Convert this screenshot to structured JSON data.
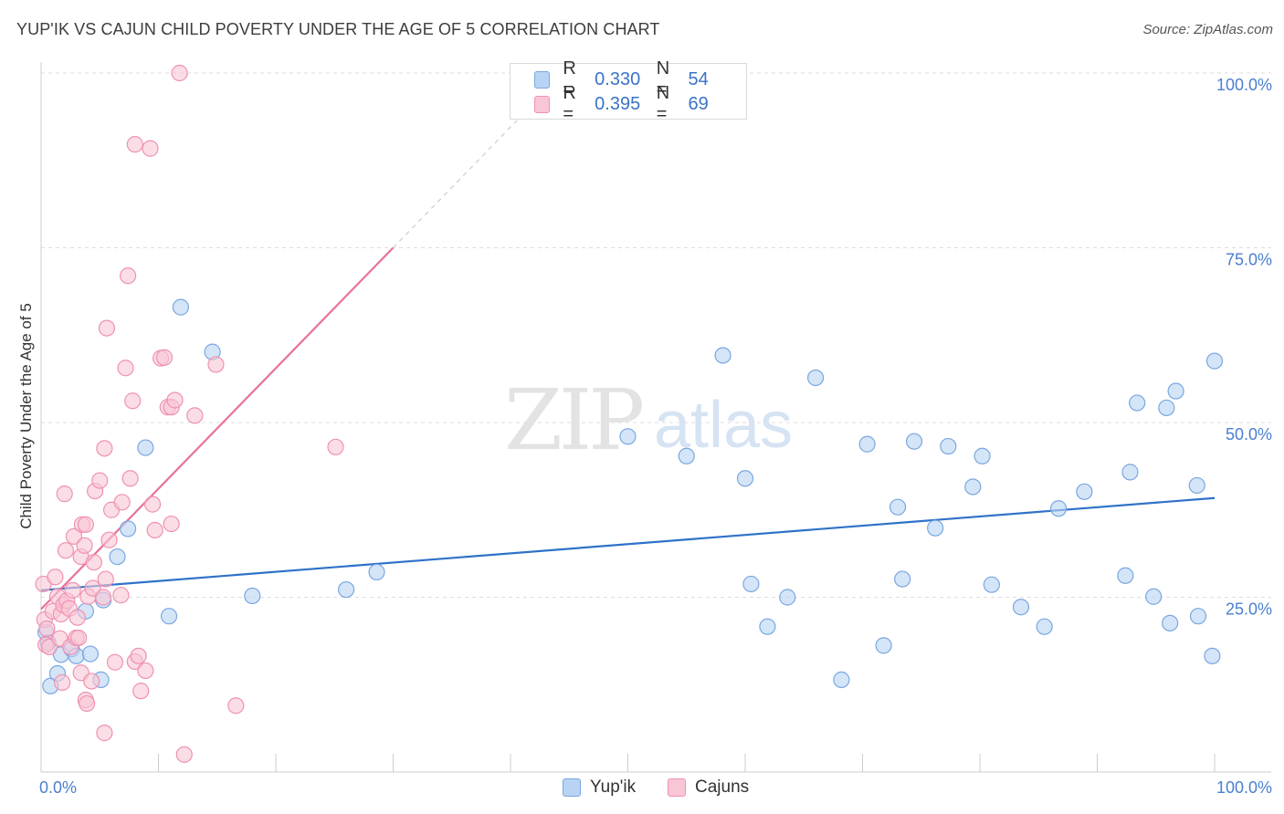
{
  "header": {
    "title": "YUP'IK VS CAJUN CHILD POVERTY UNDER THE AGE OF 5 CORRELATION CHART",
    "source": "Source: ZipAtlas.com"
  },
  "watermark": {
    "zip": "ZIP",
    "atlas": "atlas"
  },
  "legend": {
    "rows": [
      {
        "r_label": "R =",
        "r_value": "0.330",
        "n_label": "N =",
        "n_value": "54"
      },
      {
        "r_label": "R =",
        "r_value": "0.395",
        "n_label": "N =",
        "n_value": "69"
      }
    ]
  },
  "bottom_legend": {
    "items": [
      "Yup'ik",
      "Cajuns"
    ]
  },
  "colors": {
    "yupik_fill": "#b8d3f4",
    "yupik_stroke": "#7aa7e0",
    "yupik_line": "#2f72c8",
    "cajun_fill": "#f9c6d6",
    "cajun_stroke": "#ef92b0",
    "cajun_line": "#e8709a",
    "tick_label": "#4a7fd0",
    "grid": "#dedede"
  },
  "chart_data": {
    "type": "scatter",
    "title": "YUP'IK VS CAJUN CHILD POVERTY UNDER THE AGE OF 5 CORRELATION CHART",
    "xlabel": "",
    "ylabel": "Child Poverty Under the Age of 5",
    "xlim": [
      0,
      100
    ],
    "ylim": [
      0,
      100
    ],
    "x_tick_labels": [
      "0.0%",
      "100.0%"
    ],
    "y_ticks": [
      25,
      50,
      75,
      100
    ],
    "y_tick_labels": [
      "25.0%",
      "50.0%",
      "75.0%",
      "100.0%"
    ],
    "grid": true,
    "legend_position": "top-center",
    "series": [
      {
        "name": "Yup'ik",
        "R": 0.33,
        "N": 54,
        "trend": {
          "x": [
            0,
            100
          ],
          "y": [
            26.0,
            39.2
          ],
          "dashed_extension": false
        },
        "points": [
          [
            0.4,
            20.0
          ],
          [
            0.6,
            18.5
          ],
          [
            0.8,
            12.3
          ],
          [
            1.4,
            14.1
          ],
          [
            1.7,
            16.8
          ],
          [
            2.6,
            17.6
          ],
          [
            3.0,
            16.6
          ],
          [
            3.8,
            23.0
          ],
          [
            4.2,
            16.9
          ],
          [
            5.1,
            13.2
          ],
          [
            5.3,
            24.6
          ],
          [
            6.5,
            30.8
          ],
          [
            7.4,
            34.8
          ],
          [
            8.9,
            46.4
          ],
          [
            10.9,
            22.3
          ],
          [
            11.9,
            66.5
          ],
          [
            14.6,
            60.1
          ],
          [
            18.0,
            25.2
          ],
          [
            26.0,
            26.1
          ],
          [
            28.6,
            28.6
          ],
          [
            50.0,
            48.0
          ],
          [
            55.0,
            45.2
          ],
          [
            58.1,
            59.6
          ],
          [
            60.0,
            42.0
          ],
          [
            60.5,
            26.9
          ],
          [
            61.9,
            20.8
          ],
          [
            63.6,
            25.0
          ],
          [
            66.0,
            56.4
          ],
          [
            68.2,
            13.2
          ],
          [
            70.4,
            46.9
          ],
          [
            71.8,
            18.1
          ],
          [
            73.0,
            37.9
          ],
          [
            73.4,
            27.6
          ],
          [
            74.4,
            47.3
          ],
          [
            76.2,
            34.9
          ],
          [
            77.3,
            46.6
          ],
          [
            79.4,
            40.8
          ],
          [
            80.2,
            45.2
          ],
          [
            81.0,
            26.8
          ],
          [
            83.5,
            23.6
          ],
          [
            85.5,
            20.8
          ],
          [
            86.7,
            37.7
          ],
          [
            88.9,
            40.1
          ],
          [
            92.4,
            28.1
          ],
          [
            92.8,
            42.9
          ],
          [
            93.4,
            52.8
          ],
          [
            94.8,
            25.1
          ],
          [
            95.9,
            52.1
          ],
          [
            96.2,
            21.3
          ],
          [
            96.7,
            54.5
          ],
          [
            98.5,
            41.0
          ],
          [
            98.6,
            22.3
          ],
          [
            99.8,
            16.6
          ],
          [
            100.0,
            58.8
          ]
        ]
      },
      {
        "name": "Cajuns",
        "R": 0.395,
        "N": 69,
        "trend": {
          "x": [
            0,
            30
          ],
          "y": [
            23.3,
            75.0
          ],
          "dashed_extension": true,
          "dashed_to": [
            41.3,
            94.5
          ]
        },
        "points": [
          [
            0.2,
            26.9
          ],
          [
            0.3,
            21.8
          ],
          [
            0.4,
            18.2
          ],
          [
            0.5,
            20.5
          ],
          [
            0.7,
            17.9
          ],
          [
            1.0,
            23.0
          ],
          [
            1.2,
            27.9
          ],
          [
            1.4,
            25.1
          ],
          [
            1.6,
            19.1
          ],
          [
            1.7,
            22.6
          ],
          [
            1.8,
            12.8
          ],
          [
            1.9,
            23.9
          ],
          [
            2.0,
            39.8
          ],
          [
            2.1,
            31.7
          ],
          [
            2.2,
            24.5
          ],
          [
            2.4,
            23.4
          ],
          [
            2.5,
            17.9
          ],
          [
            2.7,
            26.0
          ],
          [
            2.8,
            33.7
          ],
          [
            3.0,
            19.2
          ],
          [
            3.1,
            22.1
          ],
          [
            3.2,
            19.2
          ],
          [
            3.4,
            14.2
          ],
          [
            3.4,
            30.8
          ],
          [
            3.5,
            35.4
          ],
          [
            3.7,
            32.4
          ],
          [
            3.8,
            35.4
          ],
          [
            3.8,
            10.3
          ],
          [
            3.9,
            9.8
          ],
          [
            4.0,
            25.1
          ],
          [
            4.3,
            13.0
          ],
          [
            4.4,
            26.3
          ],
          [
            4.5,
            30.0
          ],
          [
            4.6,
            40.2
          ],
          [
            5.0,
            41.7
          ],
          [
            5.3,
            25.0
          ],
          [
            5.4,
            46.3
          ],
          [
            5.4,
            5.6
          ],
          [
            5.5,
            27.6
          ],
          [
            5.6,
            63.5
          ],
          [
            5.8,
            33.2
          ],
          [
            6.0,
            37.5
          ],
          [
            6.3,
            15.7
          ],
          [
            6.8,
            25.3
          ],
          [
            6.9,
            38.6
          ],
          [
            7.2,
            57.8
          ],
          [
            7.4,
            71.0
          ],
          [
            7.6,
            42.0
          ],
          [
            7.8,
            53.1
          ],
          [
            8.0,
            89.8
          ],
          [
            8.0,
            15.8
          ],
          [
            8.3,
            16.6
          ],
          [
            8.5,
            11.6
          ],
          [
            8.9,
            14.5
          ],
          [
            9.3,
            89.2
          ],
          [
            9.5,
            38.3
          ],
          [
            9.7,
            34.6
          ],
          [
            10.2,
            59.2
          ],
          [
            10.5,
            59.3
          ],
          [
            10.8,
            52.2
          ],
          [
            11.1,
            52.2
          ],
          [
            11.1,
            35.5
          ],
          [
            11.4,
            53.2
          ],
          [
            11.8,
            100.0
          ],
          [
            12.2,
            2.5
          ],
          [
            13.1,
            51.0
          ],
          [
            14.9,
            58.3
          ],
          [
            16.6,
            9.5
          ],
          [
            25.1,
            46.5
          ]
        ]
      }
    ]
  }
}
